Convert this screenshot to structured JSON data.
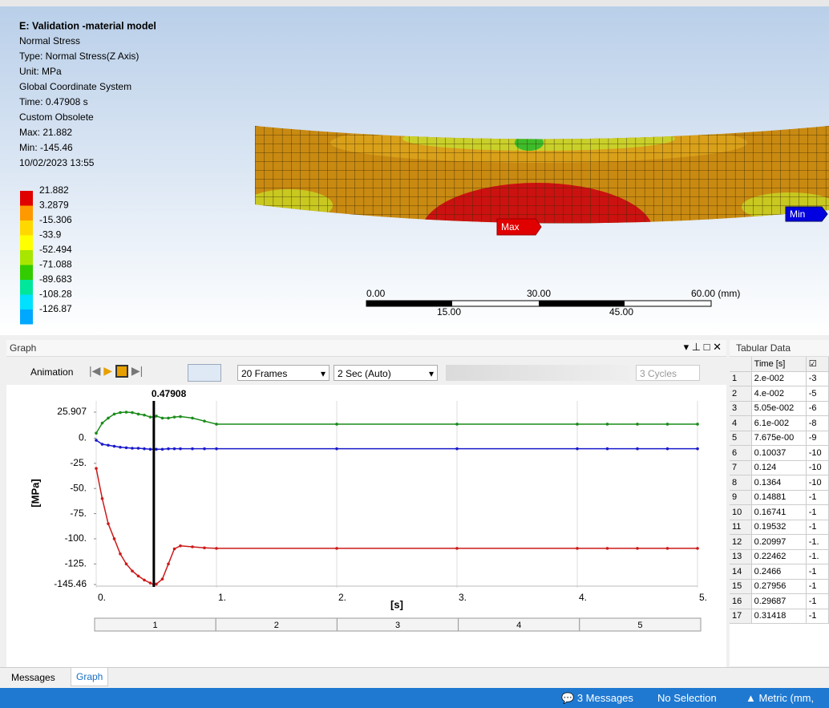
{
  "viewport": {
    "info": [
      "E: Validation -material model",
      "Normal Stress",
      "Type: Normal Stress(Z Axis)",
      "Unit: MPa",
      "Global Coordinate System",
      "Time: 0.47908 s",
      "Custom Obsolete",
      "Max: 21.882",
      "Min: -145.46",
      "10/02/2023 13:55"
    ],
    "legend": [
      {
        "label": "21.882",
        "color": "#e00000"
      },
      {
        "label": "3.2879",
        "color": "#ff9900"
      },
      {
        "label": "-15.306",
        "color": "#ffd800"
      },
      {
        "label": "-33.9",
        "color": "#ffff00"
      },
      {
        "label": "-52.494",
        "color": "#a8e600"
      },
      {
        "label": "-71.088",
        "color": "#33cc00"
      },
      {
        "label": "-89.683",
        "color": "#00e69a"
      },
      {
        "label": "-108.28",
        "color": "#00e0ff"
      },
      {
        "label": "-126.87",
        "color": "#00a8ff"
      }
    ],
    "scale_top": [
      "0.00",
      "30.00",
      "60.00 (mm)"
    ],
    "scale_bottom": [
      "15.00",
      "45.00"
    ],
    "max_tag": "Max",
    "min_tag": "Min"
  },
  "graph_panel": {
    "title": "Graph",
    "toolbar": {
      "animation": "Animation",
      "frames": "20 Frames",
      "duration": "2 Sec (Auto)",
      "cycles": "3 Cycles"
    },
    "chart": {
      "type": "line",
      "x_label": "[s]",
      "y_label": "[MPa]",
      "cursor_x": 0.47908,
      "x": [
        0,
        0.05,
        0.1,
        0.15,
        0.2,
        0.25,
        0.3,
        0.35,
        0.4,
        0.45,
        0.47908,
        0.5,
        0.55,
        0.6,
        0.65,
        0.7,
        0.8,
        0.9,
        1,
        2,
        3,
        4,
        4.25,
        4.5,
        4.75,
        5
      ],
      "series": [
        {
          "color": "#1a8c1a",
          "values": [
            5,
            15,
            20,
            24,
            25.5,
            25.9,
            25.5,
            24,
            23,
            21,
            21,
            22,
            20,
            20,
            21,
            21.5,
            20,
            17,
            14,
            14,
            14,
            14,
            14,
            14,
            14,
            14
          ]
        },
        {
          "color": "#1a1acc",
          "values": [
            -2,
            -6,
            -7,
            -8,
            -9,
            -9.5,
            -10,
            -10,
            -10.5,
            -11,
            -11,
            -11,
            -11,
            -10.5,
            -10.5,
            -10.5,
            -10.5,
            -10.5,
            -10.5,
            -10.5,
            -10.5,
            -10.5,
            -10.5,
            -10.5,
            -10.5,
            -10.5
          ]
        },
        {
          "color": "#cc1a1a",
          "values": [
            -30,
            -60,
            -85,
            -100,
            -115,
            -125,
            -132,
            -137,
            -141,
            -144,
            -145.46,
            -145,
            -140,
            -125,
            -110,
            -107,
            -108,
            -109,
            -109.5,
            -109.5,
            -109.5,
            -109.5,
            -109.5,
            -109.5,
            -109.5,
            -109.5
          ]
        }
      ],
      "xlim": [
        0,
        5
      ],
      "ylim": [
        -145.46,
        25.907
      ],
      "xticks": [
        {
          "value": 0,
          "label": "0."
        },
        {
          "value": 1,
          "label": "1."
        },
        {
          "value": 2,
          "label": "2."
        },
        {
          "value": 3,
          "label": "3."
        },
        {
          "value": 4,
          "label": "4."
        },
        {
          "value": 5,
          "label": "5."
        }
      ],
      "yticks": [
        25.907,
        {
          "value": 0,
          "label": "0."
        },
        {
          "value": -25,
          "label": "-25."
        },
        {
          "value": -50,
          "label": "-50."
        },
        {
          "value": -75,
          "label": "-75."
        },
        {
          "value": -100,
          "label": "-100."
        },
        {
          "value": -125,
          "label": "-125."
        },
        -145.46
      ],
      "grid": "x",
      "frames": [
        "1",
        "2",
        "3",
        "4",
        "5"
      ]
    }
  },
  "tabular": {
    "title": "Tabular Data",
    "columns": [
      "Time [s]"
    ],
    "rows": [
      [
        "1",
        "2.e-002",
        "-3"
      ],
      [
        "2",
        "4.e-002",
        "-5"
      ],
      [
        "3",
        "5.05e-002",
        "-6"
      ],
      [
        "4",
        "6.1e-002",
        "-8"
      ],
      [
        "5",
        "7.675e-00",
        "-9"
      ],
      [
        "6",
        "0.10037",
        "-10"
      ],
      [
        "7",
        "0.124",
        "-10"
      ],
      [
        "8",
        "0.1364",
        "-10"
      ],
      [
        "9",
        "0.14881",
        "-1"
      ],
      [
        "10",
        "0.16741",
        "-1"
      ],
      [
        "11",
        "0.19532",
        "-1"
      ],
      [
        "12",
        "0.20997",
        "-1."
      ],
      [
        "13",
        "0.22462",
        "-1."
      ],
      [
        "14",
        "0.2466",
        "-1"
      ],
      [
        "15",
        "0.27956",
        "-1"
      ],
      [
        "16",
        "0.29687",
        "-1"
      ],
      [
        "17",
        "0.31418",
        "-1"
      ]
    ]
  },
  "tabs": [
    "Messages",
    "Graph"
  ],
  "status": {
    "messages": "3 Messages",
    "selection": "No Selection",
    "units": "Metric (mm,"
  }
}
